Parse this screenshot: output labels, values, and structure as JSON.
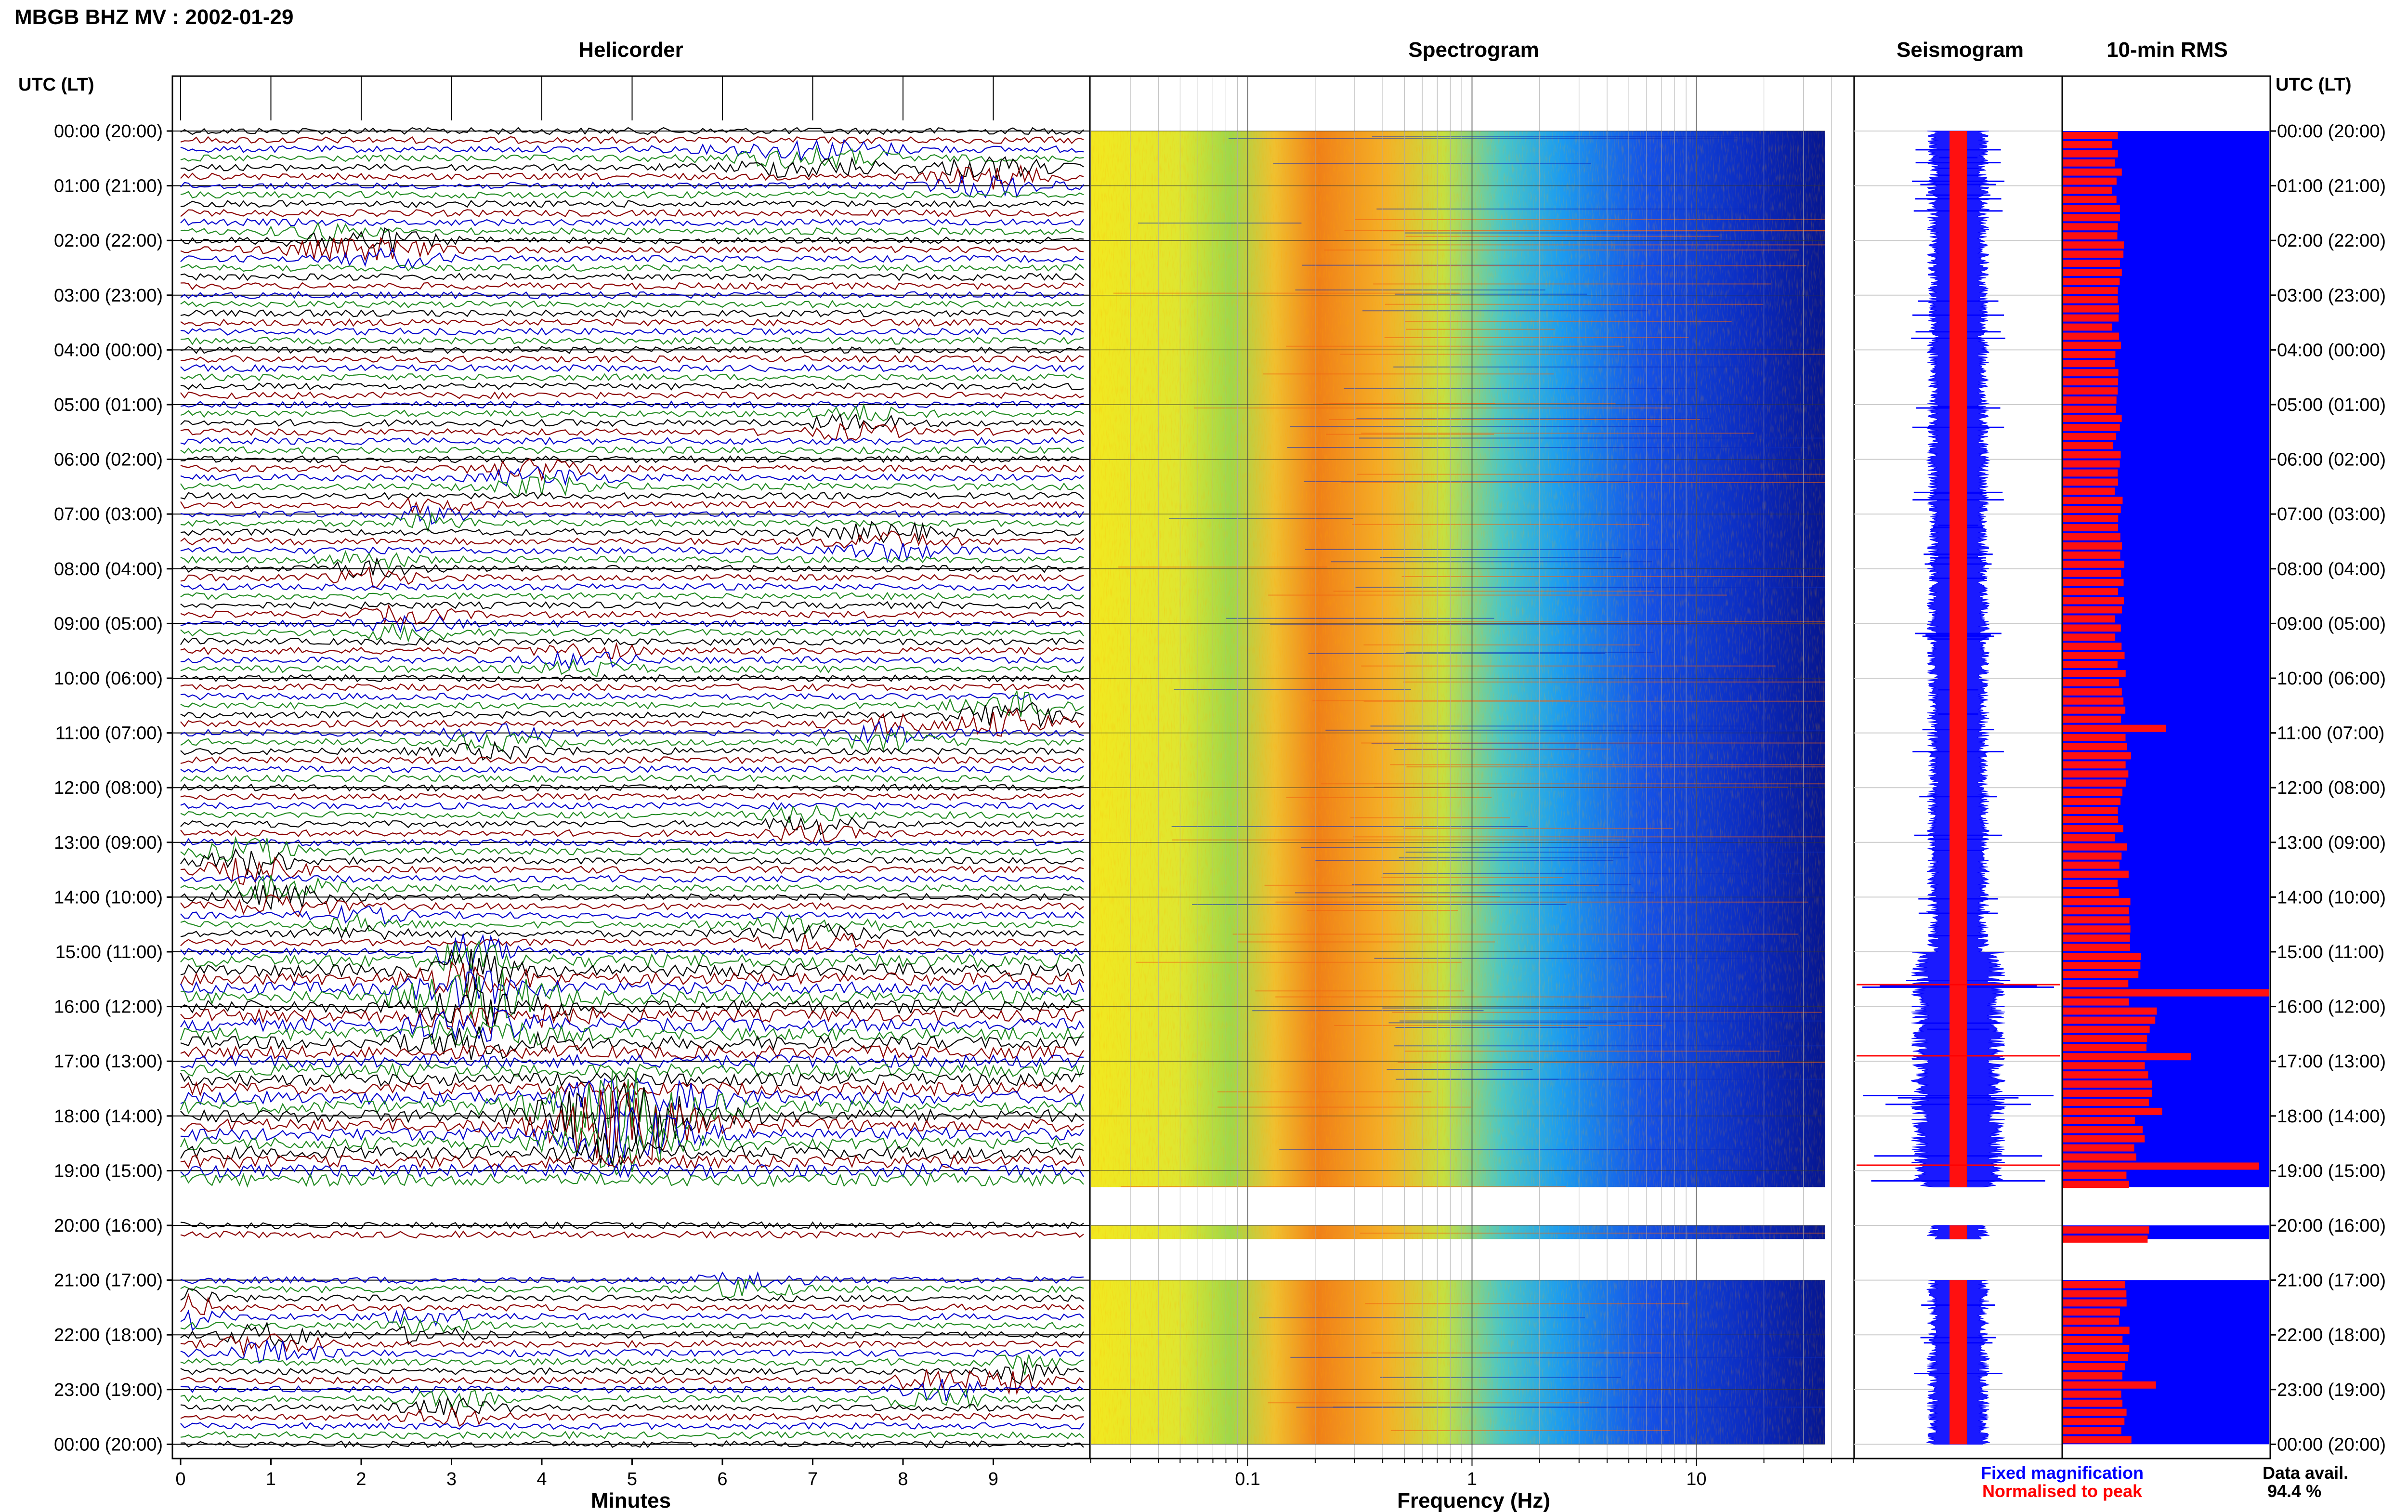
{
  "title": "MBGB BHZ MV : 2002-01-29",
  "panels": {
    "helicorder": "Helicorder",
    "spectrogram": "Spectrogram",
    "seismogram": "Seismogram",
    "rms": "10-min RMS"
  },
  "time_axis_label": "UTC (LT)",
  "time_ticks": [
    "00:00 (20:00)",
    "01:00 (21:00)",
    "02:00 (22:00)",
    "03:00 (23:00)",
    "04:00 (00:00)",
    "05:00 (01:00)",
    "06:00 (02:00)",
    "07:00 (03:00)",
    "08:00 (04:00)",
    "09:00 (05:00)",
    "10:00 (06:00)",
    "11:00 (07:00)",
    "12:00 (08:00)",
    "13:00 (09:00)",
    "14:00 (10:00)",
    "15:00 (11:00)",
    "16:00 (12:00)",
    "17:00 (13:00)",
    "18:00 (14:00)",
    "19:00 (15:00)",
    "20:00 (16:00)",
    "21:00 (17:00)",
    "22:00 (18:00)",
    "23:00 (19:00)",
    "00:00 (20:00)"
  ],
  "helicorder_axis": {
    "xlabel": "Minutes",
    "ticks": [
      "0",
      "1",
      "2",
      "3",
      "4",
      "5",
      "6",
      "7",
      "8",
      "9"
    ],
    "xlim": [
      0,
      10
    ],
    "trace_colors": [
      "#000000",
      "#8b0000",
      "#0000cd",
      "#228b22"
    ]
  },
  "spectrogram_axis": {
    "xlabel": "Frequency (Hz)",
    "scale": "log",
    "ticks": [
      "0.1",
      "1",
      "10"
    ],
    "xlim": [
      0.02,
      50
    ]
  },
  "legend": {
    "fixed": "Fixed magnification",
    "normalised": "Normalised to peak",
    "fixed_color": "#0000ff",
    "normalised_color": "#ff0000"
  },
  "data_avail": {
    "label": "Data avail.",
    "value": "94.4 %"
  },
  "chart_data": {
    "type": "bar",
    "title": "10-min RMS",
    "ylabel": "UTC (LT)",
    "gaps_hours": [
      [
        19.3,
        20.0
      ],
      [
        20.25,
        21.0
      ]
    ],
    "hours": [
      0,
      1,
      2,
      3,
      4,
      5,
      6,
      7,
      8,
      9,
      10,
      11,
      12,
      13,
      14,
      15,
      16,
      17,
      18,
      19,
      20,
      21,
      22,
      23
    ],
    "rms_relative": [
      0.26,
      0.26,
      0.27,
      0.26,
      0.27,
      0.26,
      0.27,
      0.28,
      0.27,
      0.28,
      0.28,
      0.3,
      0.28,
      0.29,
      0.32,
      0.35,
      0.42,
      0.4,
      0.38,
      0.34,
      0.38,
      0.3,
      0.3,
      0.31
    ],
    "rms_peaks": [
      {
        "hour": 10.9,
        "value": 0.5
      },
      {
        "hour": 15.6,
        "value": 1.0
      },
      {
        "hour": 16.9,
        "value": 0.62
      },
      {
        "hour": 17.9,
        "value": 0.48
      },
      {
        "hour": 18.9,
        "value": 0.95
      },
      {
        "hour": 22.9,
        "value": 0.45
      }
    ]
  }
}
